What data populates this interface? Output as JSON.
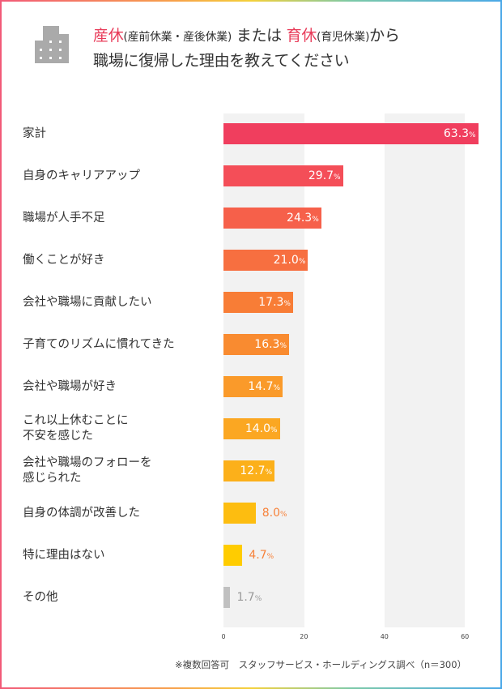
{
  "title": {
    "part1_hl": "産休",
    "part1_sub": "(産前休業・産後休業)",
    "part2": " または ",
    "part3_hl": "育休",
    "part3_sub": "(育児休業)",
    "part4": "から",
    "line2": "職場に復帰した理由を教えてください"
  },
  "icon": "building-icon",
  "note": "※複数回答可　スタッフサービス・ホールディングス調べ（n＝300）",
  "chart_data": {
    "type": "bar",
    "orientation": "horizontal",
    "categories": [
      "家計",
      "自身のキャリアアップ",
      "職場が人手不足",
      "働くことが好き",
      "会社や職場に貢献したい",
      "子育てのリズムに慣れてきた",
      "会社や職場が好き",
      "これ以上休むことに\n不安を感じた",
      "会社や職場のフォローを\n感じられた",
      "自身の体調が改善した",
      "特に理由はない",
      "その他"
    ],
    "values": [
      63.3,
      29.7,
      24.3,
      21.0,
      17.3,
      16.3,
      14.7,
      14.0,
      12.7,
      8.0,
      4.7,
      1.7
    ],
    "value_labels": [
      "63.3",
      "29.7",
      "24.3",
      "21.0",
      "17.3",
      "16.3",
      "14.7",
      "14.0",
      "12.7",
      "8.0",
      "4.7",
      "1.7"
    ],
    "unit": "%",
    "colors": [
      "#f03e5e",
      "#f44e58",
      "#f6604a",
      "#f76f40",
      "#f87d36",
      "#f98b30",
      "#fa9a2a",
      "#fba722",
      "#fcb01a",
      "#fdbd10",
      "#ffcc00",
      "#c0c0c0"
    ],
    "xticks": [
      "0",
      "20",
      "40",
      "60"
    ],
    "xlim": [
      0,
      60
    ],
    "grid": "alternating bands"
  }
}
